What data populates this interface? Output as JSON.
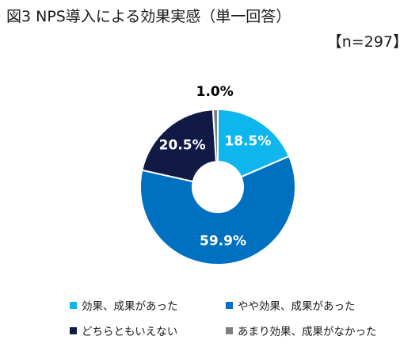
{
  "header": {
    "title": "図3 NPS導入による効果実感（単一回答）",
    "sample": "【n=297】"
  },
  "colors": {
    "slice_1": "#0db6ec",
    "slice_2": "#0071c1",
    "slice_3": "#111a45",
    "slice_4": "#7f7f7f",
    "label_light": "#ffffff",
    "label_dark": "#000000"
  },
  "chart_data": {
    "type": "pie",
    "variant": "donut",
    "categories": [
      "効果、成果があった",
      "やや効果、成果があった",
      "どちらともいえない",
      "あまり効果、成果がなかった"
    ],
    "values": [
      18.5,
      59.9,
      20.5,
      1.0
    ],
    "labels": [
      "18.5%",
      "59.9%",
      "20.5%",
      "1.0%"
    ],
    "unit": "%",
    "start_angle": "12 o'clock",
    "direction": "clockwise",
    "legend_position": "bottom",
    "title": "図3 NPS導入による効果実感（単一回答）"
  }
}
